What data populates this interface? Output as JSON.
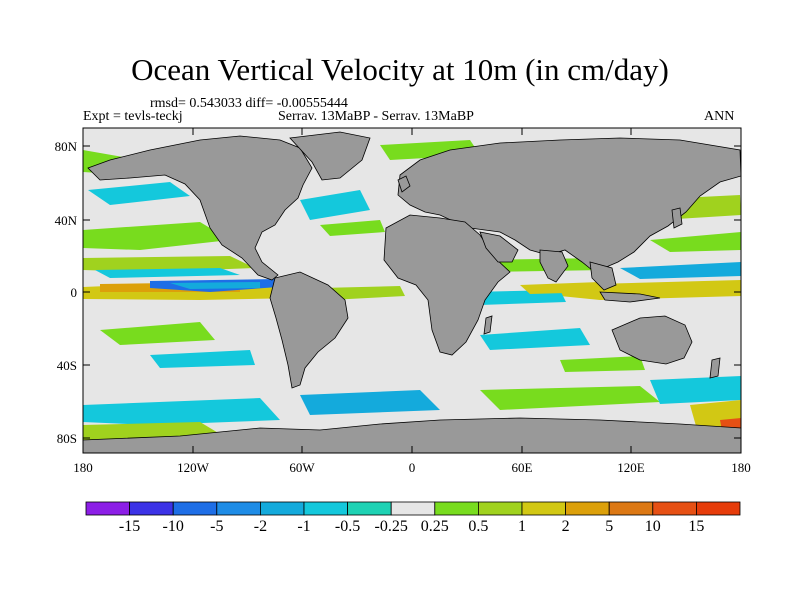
{
  "title": "Ocean Vertical Velocity at 10m (in cm/day)",
  "stats_line": "rmsd= 0.543033 diff= -0.00555444",
  "expt_label": "Expt = tevls-teckj",
  "comparison_label": "Serrav.  13MaBP - Serrav.  13MaBP",
  "season_label": "ANN",
  "lat_labels": [
    "80N",
    "40N",
    "0",
    "40S",
    "80S"
  ],
  "lon_labels": [
    "180",
    "120W",
    "60W",
    "0",
    "60E",
    "120E",
    "180"
  ],
  "colorbar": {
    "labels": [
      "-15",
      "-10",
      "-5",
      "-2",
      "-1",
      "-0.5",
      "-0.25",
      "0.25",
      "0.5",
      "1",
      "2",
      "5",
      "10",
      "15"
    ],
    "colors": [
      "#8c1ee6",
      "#3c32e6",
      "#1e6ee6",
      "#1e8ce6",
      "#14aadc",
      "#14c8dc",
      "#1ed2b4",
      "#e6e6e6",
      "#78dc1e",
      "#a0d21e",
      "#d2c814",
      "#dca00a",
      "#dc7814",
      "#e65014",
      "#e63c0a"
    ]
  },
  "colors": {
    "land": "#999999",
    "ocean_neutral": "#e6e6e6"
  },
  "chart_data": {
    "type": "heatmap",
    "title": "Ocean Vertical Velocity at 10m (in cm/day)",
    "units": "cm/day",
    "x_axis": {
      "range": [
        -180,
        180
      ],
      "ticks": [
        -180,
        -120,
        -60,
        0,
        60,
        120,
        180
      ]
    },
    "y_axis": {
      "range": [
        -90,
        90
      ],
      "ticks": [
        80,
        40,
        0,
        -40,
        -80
      ]
    },
    "contour_levels": [
      -15,
      -10,
      -5,
      -2,
      -1,
      -0.5,
      -0.25,
      0.25,
      0.5,
      1,
      2,
      5,
      10,
      15
    ],
    "rmsd": 0.543033,
    "diff": -0.00555444,
    "season": "ANN"
  }
}
